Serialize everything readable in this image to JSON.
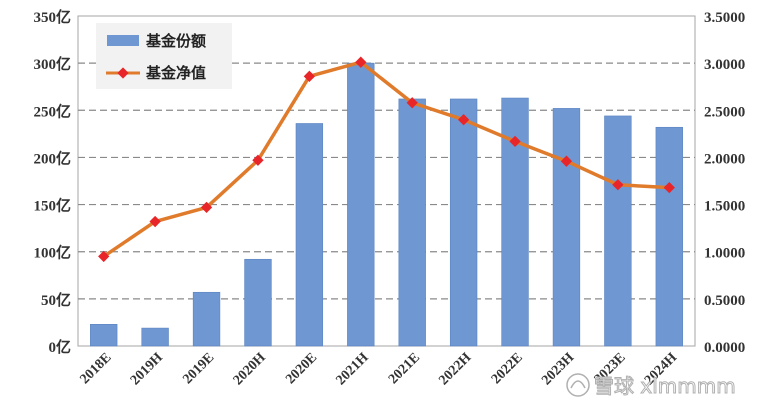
{
  "chart_data": {
    "type": "bar",
    "categories": [
      "2018E",
      "2019H",
      "2019E",
      "2020H",
      "2020E",
      "2021H",
      "2021E",
      "2022H",
      "2022E",
      "2023H",
      "2023E",
      "2024H"
    ],
    "series": [
      {
        "name": "基金份额",
        "type": "bar",
        "axis": "left",
        "values": [
          23,
          19,
          57,
          92,
          236,
          300,
          262,
          262,
          263,
          252,
          244,
          232
        ]
      },
      {
        "name": "基金净值",
        "type": "line",
        "axis": "right",
        "values": [
          0.95,
          1.32,
          1.47,
          1.97,
          2.86,
          3.01,
          2.58,
          2.4,
          2.17,
          1.96,
          1.71,
          1.68
        ]
      }
    ],
    "y_left": {
      "ticks": [
        "0亿",
        "50亿",
        "100亿",
        "150亿",
        "200亿",
        "250亿",
        "300亿",
        "350亿"
      ],
      "ylim": [
        0,
        350
      ]
    },
    "y_right": {
      "ticks": [
        "0.0000",
        "0.5000",
        "1.0000",
        "1.5000",
        "2.0000",
        "2.5000",
        "3.0000",
        "3.5000"
      ],
      "ylim": [
        0,
        3.5
      ]
    },
    "grid": true,
    "legend_position": "top-left",
    "colors": {
      "bar": "#6f97d2",
      "bar_edge": "#5a83c0",
      "line": "#e07b2c",
      "marker": "#e8262a",
      "grid": "#8a8a8a"
    }
  },
  "watermark": {
    "text": "雪球 xlmmmm"
  }
}
